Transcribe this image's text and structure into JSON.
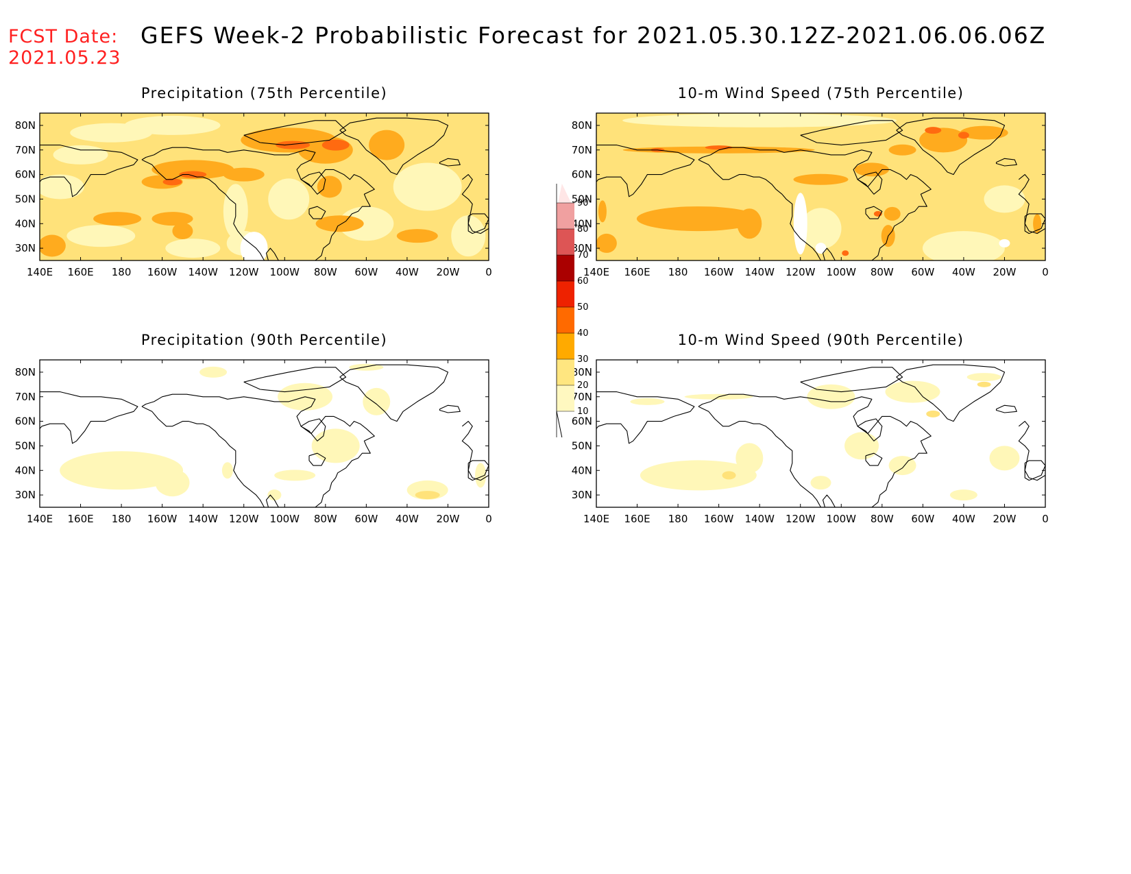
{
  "header": {
    "fcst_label": "FCST Date:",
    "fcst_date": "2021.05.23",
    "title": "GEFS Week-2 Probabilistic Forecast for 2021.05.30.12Z-2021.06.06.06Z"
  },
  "axes": {
    "x_ticks": [
      "140E",
      "160E",
      "180",
      "160W",
      "140W",
      "120W",
      "100W",
      "80W",
      "60W",
      "40W",
      "20W",
      "0"
    ],
    "y_ticks": [
      "80N",
      "70N",
      "60N",
      "50N",
      "40N",
      "30N"
    ]
  },
  "panels": [
    {
      "id": "precip75",
      "title": "Precipitation (75th Percentile)"
    },
    {
      "id": "wind75",
      "title": "10-m Wind Speed (75th Percentile)"
    },
    {
      "id": "precip90",
      "title": "Precipitation (90th Percentile)"
    },
    {
      "id": "wind90",
      "title": "10-m Wind Speed (90th Percentile)"
    }
  ],
  "colorbar": {
    "levels": [
      "10",
      "20",
      "30",
      "40",
      "50",
      "60",
      "70",
      "80",
      "90"
    ],
    "colors": [
      "#fff8c0",
      "#ffe680",
      "#ffaa00",
      "#ff6a00",
      "#ee2200",
      "#aa0000",
      "#dd5555",
      "#f0a0a0",
      "#ffe6e6"
    ]
  }
}
